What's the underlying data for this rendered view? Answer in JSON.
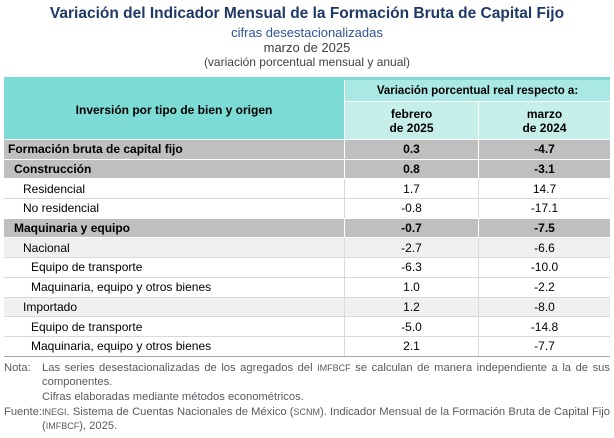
{
  "header": {
    "title": "Variación del Indicador Mensual de la Formación Bruta de Capital Fijo",
    "subtitle1": "cifras desestacionalizadas",
    "subtitle2": "marzo de 2025",
    "subtitle3": "(variación porcentual mensual y anual)"
  },
  "table": {
    "row_header": "Inversión por tipo de bien y origen",
    "col_group_header": "Variación porcentual real respecto a:",
    "columns": [
      {
        "line1": "febrero",
        "line2": "de 2025"
      },
      {
        "line1": "marzo",
        "line2": "de 2024"
      }
    ],
    "rows": [
      {
        "label": "Formación bruta de capital fijo",
        "indent": 0,
        "bold": true,
        "bg": "gray",
        "values": [
          "0.3",
          "-4.7"
        ]
      },
      {
        "label": "Construcción",
        "indent": 1,
        "bold": true,
        "bg": "gray",
        "values": [
          "0.8",
          "-3.1"
        ]
      },
      {
        "label": "Residencial",
        "indent": 2,
        "bold": false,
        "bg": "white",
        "values": [
          "1.7",
          "14.7"
        ]
      },
      {
        "label": "No residencial",
        "indent": 2,
        "bold": false,
        "bg": "white",
        "values": [
          "-0.8",
          "-17.1"
        ]
      },
      {
        "label": "Maquinaria y equipo",
        "indent": 1,
        "bold": true,
        "bg": "gray",
        "values": [
          "-0.7",
          "-7.5"
        ]
      },
      {
        "label": "Nacional",
        "indent": 2,
        "bold": false,
        "bg": "light",
        "values": [
          "-2.7",
          "-6.6"
        ]
      },
      {
        "label": "Equipo de transporte",
        "indent": 3,
        "bold": false,
        "bg": "white",
        "values": [
          "-6.3",
          "-10.0"
        ]
      },
      {
        "label": "Maquinaria, equipo y otros bienes",
        "indent": 3,
        "bold": false,
        "bg": "white",
        "values": [
          "1.0",
          "-2.2"
        ]
      },
      {
        "label": "Importado",
        "indent": 2,
        "bold": false,
        "bg": "light",
        "values": [
          "1.2",
          "-8.0"
        ]
      },
      {
        "label": "Equipo de transporte",
        "indent": 3,
        "bold": false,
        "bg": "white",
        "values": [
          "-5.0",
          "-14.8"
        ]
      },
      {
        "label": "Maquinaria, equipo y otros bienes",
        "indent": 3,
        "bold": false,
        "bg": "white",
        "values": [
          "2.1",
          "-7.7"
        ]
      }
    ]
  },
  "notes": [
    {
      "label": "Nota:",
      "paragraphs": [
        [
          {
            "text": "Las series desestacionalizadas de los agregados del "
          },
          {
            "text": "IMFBCF",
            "acronym": true
          },
          {
            "text": " se calculan de manera independiente a la de sus componentes."
          }
        ],
        [
          {
            "text": "Cifras elaboradas mediante métodos econométricos."
          }
        ]
      ]
    },
    {
      "label": "Fuente:",
      "paragraphs": [
        [
          {
            "text": "INEGI",
            "acronym": true
          },
          {
            "text": ". Sistema de Cuentas Nacionales de México ("
          },
          {
            "text": "SCNM",
            "acronym": true
          },
          {
            "text": "). Indicador Mensual de la Formación Bruta de Capital Fijo ("
          },
          {
            "text": "IMFBCF",
            "acronym": true
          },
          {
            "text": "), 2025."
          }
        ]
      ]
    }
  ],
  "colors": {
    "title_navy": "#1F3864",
    "subtitle_blue": "#2F5496",
    "header_teal": "#7CDBD5",
    "group_header_teal": "#A9E8E3",
    "column_header_teal": "#C6EFEA",
    "bold_row_gray": "#BFBFBF",
    "subtotal_row_gray": "#F0F0F0",
    "grid_line": "#D9D9D9",
    "table_bottom_border": "#A6A6A6",
    "note_text_gray": "#565B62"
  }
}
